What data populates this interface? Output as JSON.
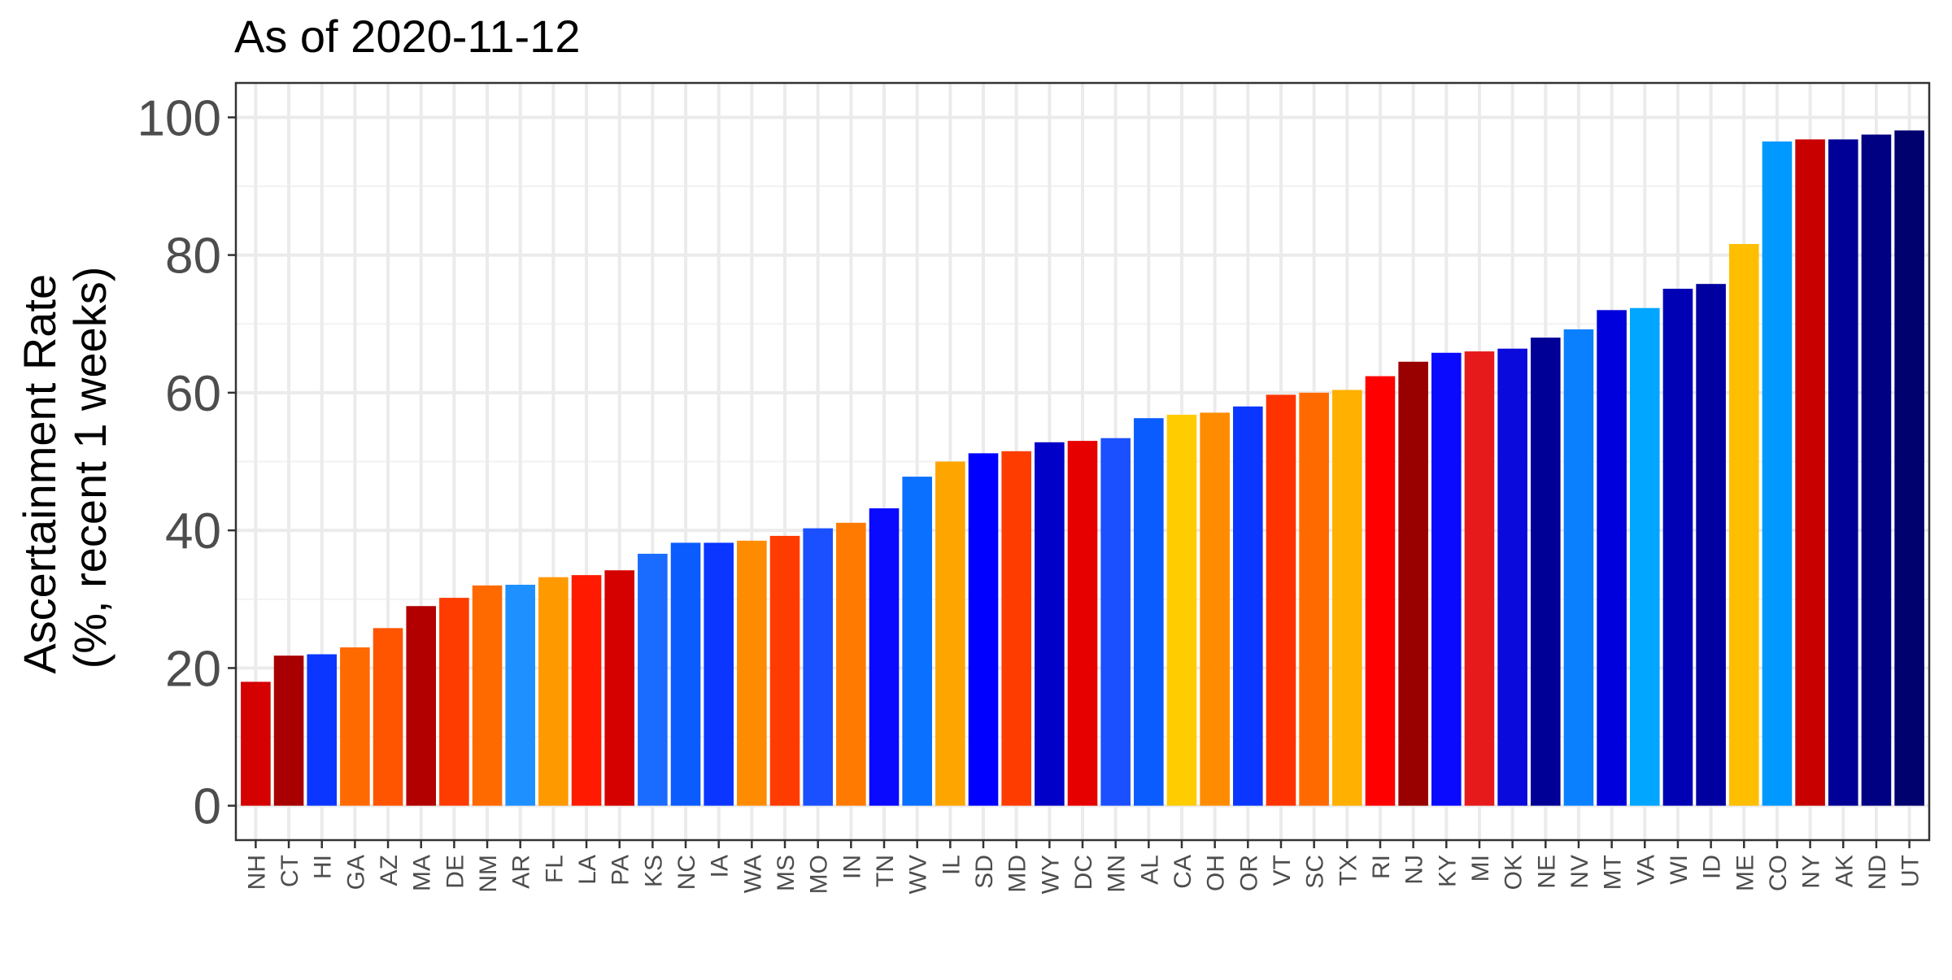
{
  "chart_data": {
    "type": "bar",
    "title": "As of 2020-11-12",
    "ylabel_line1": "Ascertainment Rate",
    "ylabel_line2": "(%, recent 1 weeks)",
    "xlabel": "",
    "ylim": [
      -5,
      105
    ],
    "yticks": [
      0,
      20,
      40,
      60,
      80,
      100
    ],
    "grid": true,
    "legend": "none",
    "categories": [
      "NH",
      "CT",
      "HI",
      "GA",
      "AZ",
      "MA",
      "DE",
      "NM",
      "AR",
      "FL",
      "LA",
      "PA",
      "KS",
      "NC",
      "IA",
      "WA",
      "MS",
      "MO",
      "IN",
      "TN",
      "WV",
      "IL",
      "SD",
      "MD",
      "WY",
      "DC",
      "MN",
      "AL",
      "CA",
      "OH",
      "OR",
      "VT",
      "SC",
      "TX",
      "RI",
      "NJ",
      "KY",
      "MI",
      "OK",
      "NE",
      "NV",
      "MT",
      "VA",
      "WI",
      "ID",
      "ME",
      "CO",
      "NY",
      "AK",
      "ND",
      "UT"
    ],
    "values": [
      18.0,
      21.8,
      22.0,
      23.0,
      25.8,
      29.0,
      30.2,
      32.0,
      32.1,
      33.2,
      33.5,
      34.2,
      36.6,
      38.2,
      38.2,
      38.5,
      39.2,
      40.3,
      41.1,
      43.2,
      47.8,
      50.0,
      51.2,
      51.5,
      52.8,
      53.0,
      53.4,
      56.3,
      56.8,
      57.1,
      58.0,
      59.7,
      60.0,
      60.4,
      62.4,
      64.5,
      65.8,
      66.0,
      66.4,
      68.0,
      69.2,
      72.0,
      72.3,
      75.1,
      75.8,
      81.6,
      96.5,
      96.8,
      96.8,
      97.5,
      98.1
    ],
    "colors": [
      "#D50000",
      "#A80000",
      "#0A36FF",
      "#FF6A00",
      "#FF5500",
      "#B20000",
      "#FF3C00",
      "#FF6A00",
      "#1E90FF",
      "#FF9900",
      "#FF1A00",
      "#D50000",
      "#1A6BFF",
      "#0A5CFF",
      "#0A36FF",
      "#FF8C00",
      "#FF3C00",
      "#1A50FF",
      "#FF7A00",
      "#0A0AFF",
      "#0A70FF",
      "#FFA500",
      "#0000FF",
      "#FF3C00",
      "#0000C8",
      "#E60000",
      "#1A50FF",
      "#0A5CFF",
      "#FFCC00",
      "#FF8C00",
      "#0A36FF",
      "#FF3300",
      "#FF6A00",
      "#FFB000",
      "#FF0000",
      "#990000",
      "#0A0AFF",
      "#E61A1A",
      "#0A0ADC",
      "#000096",
      "#0A80FF",
      "#0000DC",
      "#00A6FF",
      "#0000B4",
      "#0000A0",
      "#FFBE00",
      "#0099FF",
      "#C80000",
      "#000096",
      "#000082",
      "#00006E"
    ]
  }
}
